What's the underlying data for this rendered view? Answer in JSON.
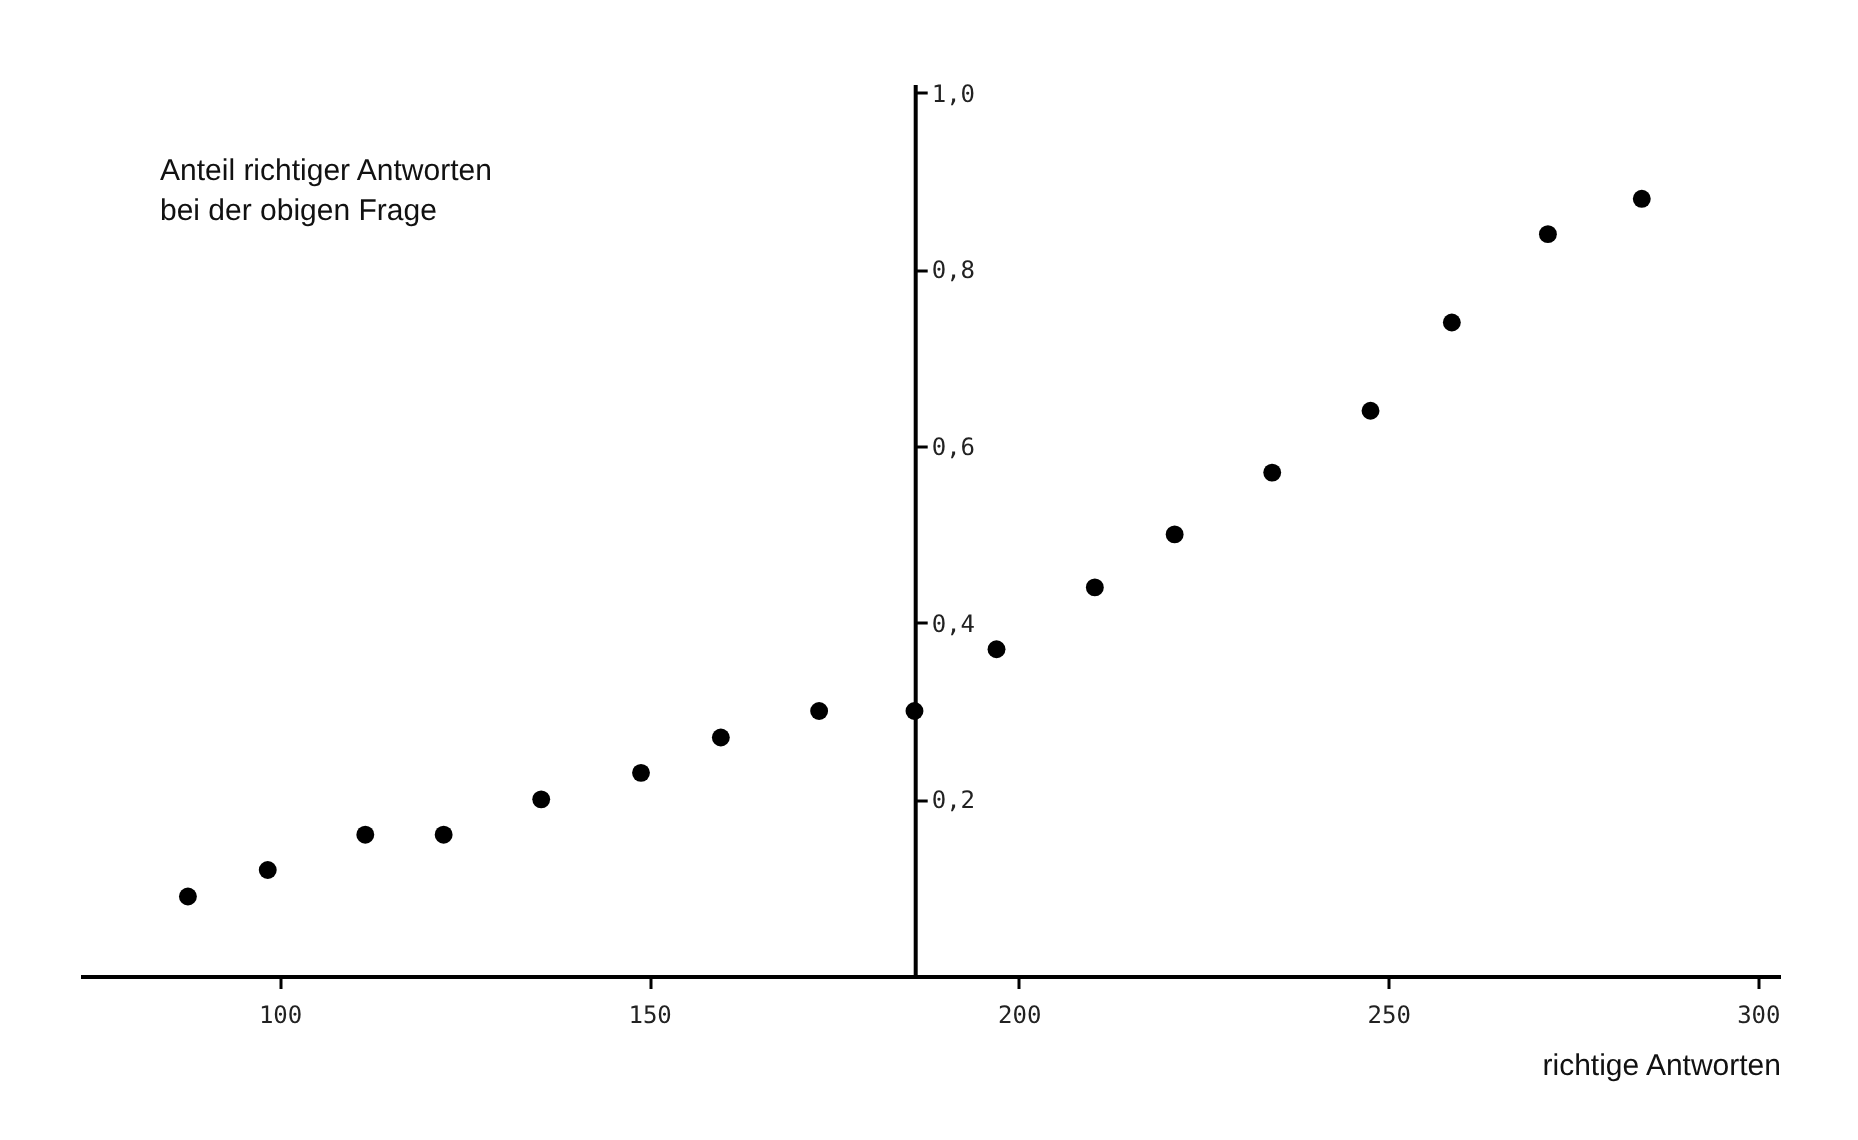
{
  "chart_data": {
    "type": "scatter",
    "xlabel": "richtige Antworten",
    "ylabel": "Anteil richtiger Antworten\nbei der obigen Frage",
    "x": [
      87.6,
      98.4,
      111.6,
      122.2,
      135.4,
      148.9,
      159.7,
      173,
      185.9,
      197,
      210.3,
      221.1,
      234.3,
      247.6,
      258.6,
      271.6,
      284.3
    ],
    "series": [
      {
        "color": "#000000",
        "values": [
          0.09,
          0.12,
          0.16,
          0.16,
          0.2,
          0.23,
          0.27,
          0.3,
          0.3,
          0.37,
          0.44,
          0.5,
          0.57,
          0.64,
          0.74,
          0.84,
          0.88
        ]
      }
    ],
    "xlim": [
      73,
      303
    ],
    "xticks": [
      100,
      150,
      200,
      250,
      300
    ],
    "ylim": [
      0,
      1.01
    ],
    "yticks": [
      {
        "value": 0.2,
        "label": "0,2"
      },
      {
        "value": 0.4,
        "label": "0,4"
      },
      {
        "value": 0.6,
        "label": "0,6"
      },
      {
        "value": 0.8,
        "label": "0,8"
      },
      {
        "value": 1.0,
        "label": "1,0"
      }
    ],
    "marker": "circle",
    "grid": false
  }
}
